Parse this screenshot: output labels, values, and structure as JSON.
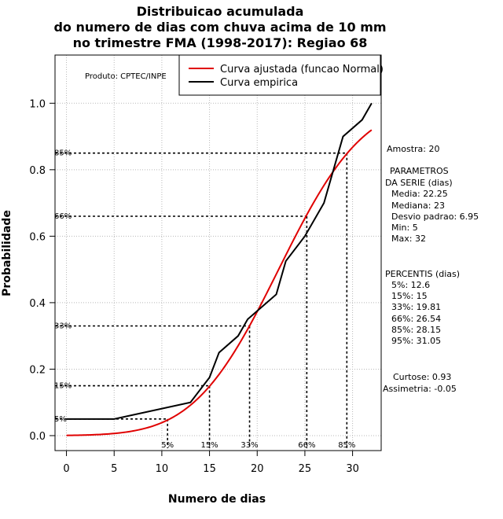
{
  "chart_data": {
    "type": "line",
    "title": [
      "Distribuicao acumulada",
      "do numero de dias com chuva acima de 10 mm",
      "no trimestre FMA (1998-2017): Regiao 68"
    ],
    "xlabel": "Numero de dias",
    "ylabel": "Probabilidade",
    "xlim": [
      -1.2,
      33
    ],
    "ylim": [
      -0.045,
      1.145
    ],
    "x_ticks": [
      0,
      5,
      10,
      15,
      20,
      25,
      30
    ],
    "y_ticks": [
      0.0,
      0.2,
      0.4,
      0.6,
      0.8,
      1.0
    ],
    "grid": true,
    "series": [
      {
        "name": "Curva ajustada (funcao Normal)",
        "color": "#e00000",
        "kind": "normal_cdf",
        "mean": 22.25,
        "sd": 6.95,
        "x_range": [
          0,
          32
        ]
      },
      {
        "name": "Curva empirica",
        "color": "#000000",
        "kind": "points",
        "x": [
          0,
          5,
          13,
          15,
          16,
          18,
          19,
          21,
          22,
          23,
          25,
          27,
          28,
          29,
          31,
          32
        ],
        "y": [
          0.05,
          0.05,
          0.1,
          0.175,
          0.25,
          0.3,
          0.35,
          0.4,
          0.425,
          0.525,
          0.6,
          0.7,
          0.8,
          0.9,
          0.95,
          1.0
        ]
      }
    ],
    "percentile_markers": [
      {
        "label": "5%",
        "x": 10.6,
        "y": 0.05
      },
      {
        "label": "15%",
        "x": 15.0,
        "y": 0.15
      },
      {
        "label": "33%",
        "x": 19.2,
        "y": 0.33
      },
      {
        "label": "66%",
        "x": 25.2,
        "y": 0.66
      },
      {
        "label": "85%",
        "x": 29.4,
        "y": 0.85
      }
    ],
    "legend_position": "top-right",
    "annotation": "Produto: CPTEC/INPE"
  },
  "stats": {
    "amostra": "Amostra: 20",
    "parametros_title": [
      "PARAMETROS",
      "DA SERIE (dias)"
    ],
    "parametros": [
      "Media: 22.25",
      "Mediana: 23",
      "Desvio padrao: 6.95",
      "Min: 5",
      "Max: 32"
    ],
    "percentis_title": "PERCENTIS (dias)",
    "percentis": [
      "5%: 12.6",
      "15%: 15",
      "33%: 19.81",
      "66%: 26.54",
      "85%: 28.15",
      "95%: 31.05"
    ],
    "curtose": "Curtose: 0.93",
    "assimetria": "Assimetria: -0.05"
  },
  "colors": {
    "fitted": "#e00000",
    "empirical": "#000000",
    "grid": "#b8b8b8"
  }
}
